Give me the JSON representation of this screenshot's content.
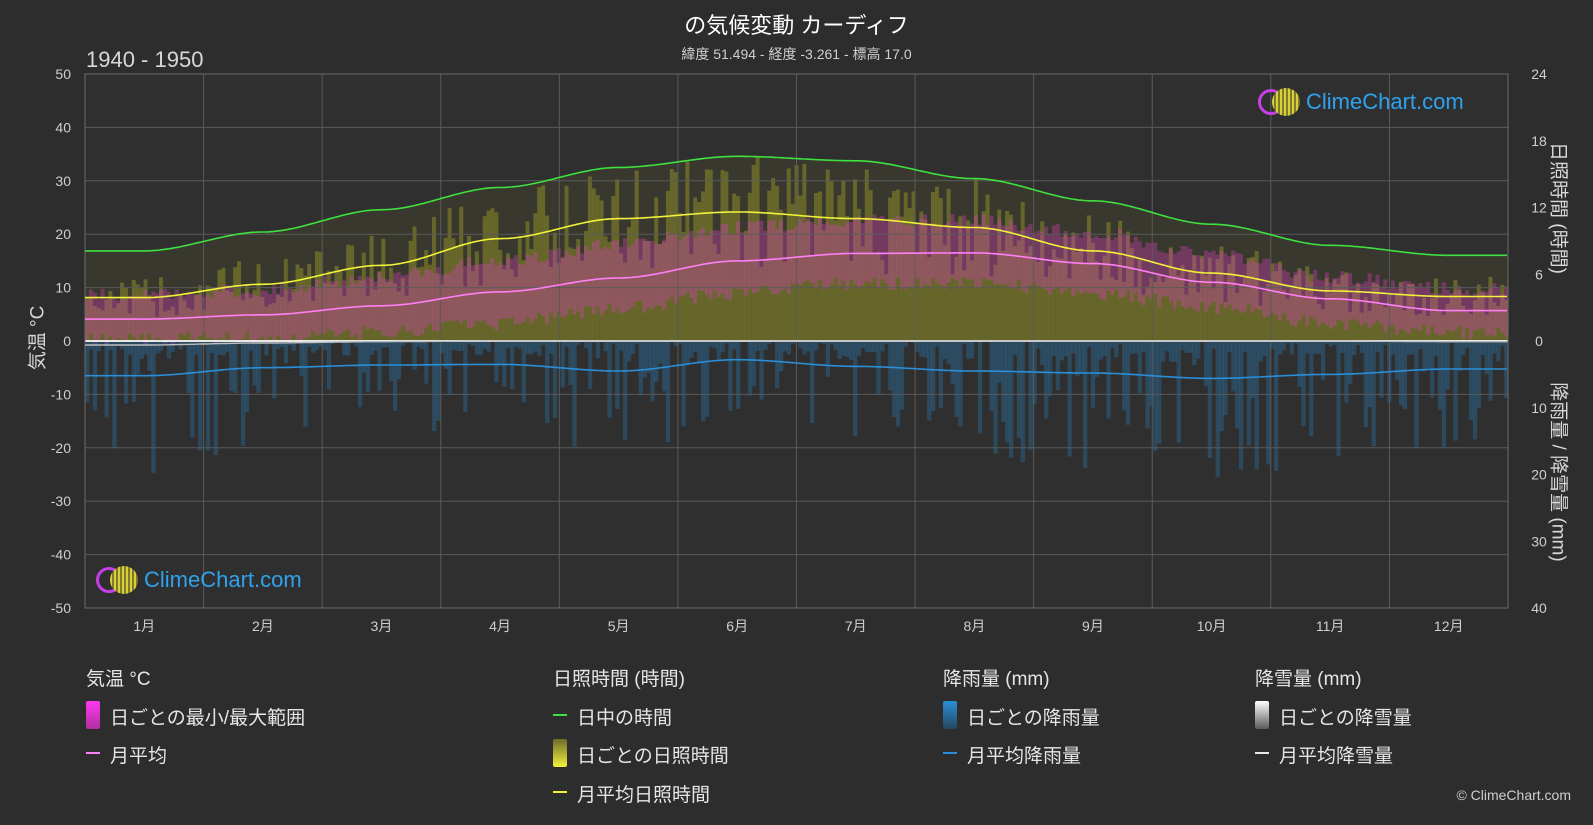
{
  "header": {
    "title": "の気候変動 カーディフ",
    "subtitle": "緯度 51.494 - 経度 -3.261 - 標高 17.0",
    "period": "1940 - 1950"
  },
  "axes": {
    "left_label": "気温 °C",
    "right_top_label": "日照時間 (時間)",
    "right_bottom_label": "降雨量 / 降雪量 (mm)"
  },
  "legend": {
    "temp": {
      "head": "気温 °C",
      "range": "日ごとの最小/最大範囲",
      "avg": "月平均"
    },
    "sun": {
      "head": "日照時間 (時間)",
      "daylight": "日中の時間",
      "daily": "日ごとの日照時間",
      "avg": "月平均日照時間"
    },
    "rain": {
      "head": "降雨量 (mm)",
      "daily": "日ごとの降雨量",
      "avg": "月平均降雨量"
    },
    "snow": {
      "head": "降雪量 (mm)",
      "daily": "日ごとの降雪量",
      "avg": "月平均降雪量"
    }
  },
  "logo_text": "ClimeChart.com",
  "copyright": "© ClimeChart.com",
  "colors": {
    "background": "#2d2d2d",
    "daylight": "#3fe03f",
    "sunshine_avg": "#f2f23a",
    "sunshine_fill": "#8c8c2a",
    "temp_avg": "#ff7ff5",
    "temp_range": "#d23fb4",
    "rain": "#2a8fd8",
    "snow": "#bdbdbd",
    "logo_text": "#2fa2ee"
  },
  "chart_data": {
    "type": "line",
    "categories": [
      "1月",
      "2月",
      "3月",
      "4月",
      "5月",
      "6月",
      "7月",
      "8月",
      "9月",
      "10月",
      "11月",
      "12月"
    ],
    "x_label": "",
    "y_left": {
      "label": "気温 °C",
      "range": [
        -50,
        50
      ],
      "ticks": [
        50,
        40,
        30,
        20,
        10,
        0,
        -10,
        -20,
        -30,
        -40,
        -50
      ]
    },
    "y_right_top": {
      "label": "日照時間 (時間)",
      "range": [
        0,
        24
      ],
      "ticks": [
        24,
        18,
        12,
        6,
        0
      ]
    },
    "y_right_bottom": {
      "label": "降雨量 / 降雪量 (mm)",
      "range": [
        0,
        40
      ],
      "ticks": [
        0,
        10,
        20,
        30,
        40
      ]
    },
    "grid": true,
    "series": [
      {
        "name": "日中の時間",
        "axis": "sunshine_hours",
        "values": [
          8.1,
          9.8,
          11.8,
          13.8,
          15.6,
          16.6,
          16.2,
          14.6,
          12.6,
          10.5,
          8.6,
          7.7
        ]
      },
      {
        "name": "月平均日照時間",
        "axis": "sunshine_hours",
        "values": [
          3.9,
          5.1,
          6.8,
          9.2,
          11.0,
          11.6,
          11.0,
          10.2,
          8.1,
          6.1,
          4.5,
          4.0
        ]
      },
      {
        "name": "月平均",
        "axis": "temperature_c",
        "values": [
          4.1,
          4.9,
          6.6,
          9.2,
          11.8,
          15.0,
          16.4,
          16.5,
          14.5,
          11.0,
          7.9,
          5.7
        ]
      },
      {
        "name": "日ごとの最小/最大範囲 (最小)",
        "axis": "temperature_c",
        "values": [
          1.5,
          1.8,
          2.8,
          4.5,
          7.3,
          10.2,
          12.0,
          12.0,
          10.2,
          7.6,
          4.6,
          2.9
        ]
      },
      {
        "name": "日ごとの最小/最大範囲 (最大)",
        "axis": "temperature_c",
        "values": [
          7.4,
          8.2,
          10.9,
          13.8,
          16.9,
          20.0,
          21.5,
          21.3,
          19.0,
          15.0,
          10.8,
          8.5
        ]
      },
      {
        "name": "月平均降雨量",
        "axis": "precip_mm",
        "values": [
          5.2,
          4.0,
          3.6,
          3.5,
          4.5,
          2.8,
          3.8,
          4.5,
          4.8,
          5.6,
          5.0,
          4.2
        ]
      },
      {
        "name": "月平均降雪量",
        "axis": "precip_mm",
        "values": [
          0.6,
          0.3,
          0.1,
          0,
          0,
          0,
          0,
          0,
          0,
          0,
          0,
          0.1
        ]
      }
    ]
  }
}
